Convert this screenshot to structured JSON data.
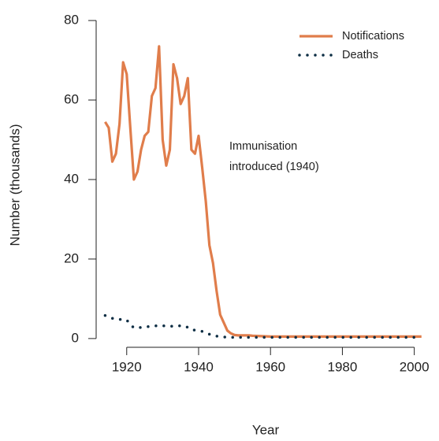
{
  "chart_data": {
    "type": "line",
    "x_label": "Year",
    "y_label": "Number (thousands)",
    "annotation": [
      "Immunisation",
      "introduced (1940)"
    ],
    "x": [
      1914,
      1915,
      1916,
      1917,
      1918,
      1919,
      1920,
      1921,
      1922,
      1923,
      1924,
      1925,
      1926,
      1927,
      1928,
      1929,
      1930,
      1931,
      1932,
      1933,
      1934,
      1935,
      1936,
      1937,
      1938,
      1939,
      1940,
      1941,
      1942,
      1943,
      1944,
      1945,
      1946,
      1947,
      1948,
      1949,
      1950,
      1951,
      1952,
      1953,
      1954,
      1955,
      1960,
      1965,
      1970,
      1975,
      1980,
      1985,
      1990,
      1995,
      2000,
      2002
    ],
    "series": [
      {
        "name": "Notifications",
        "color": "#e07d4b",
        "style": "solid",
        "values": [
          54.5,
          53,
          44.5,
          46.5,
          54,
          69.5,
          66.5,
          53,
          40,
          42,
          47.5,
          51,
          52,
          61,
          63,
          73.5,
          50,
          43.5,
          47.5,
          69,
          65.5,
          59,
          61,
          65.5,
          47.5,
          46.5,
          51,
          43,
          34.5,
          23.5,
          19,
          12,
          6,
          4,
          2,
          1.3,
          0.9,
          0.8,
          0.8,
          0.8,
          0.8,
          0.7,
          0.5,
          0.5,
          0.5,
          0.5,
          0.5,
          0.5,
          0.5,
          0.5,
          0.5,
          0.5
        ]
      },
      {
        "name": "Deaths",
        "color": "#0d2e44",
        "style": "dotted",
        "values": [
          5.8,
          5.5,
          5.1,
          4.9,
          4.8,
          4.8,
          4.7,
          3.5,
          2.7,
          2.7,
          2.8,
          2.9,
          3,
          3.1,
          3.2,
          3.2,
          3.2,
          3.2,
          3.1,
          3.1,
          3.2,
          3.2,
          3.2,
          2.8,
          2.2,
          2.1,
          2,
          1.8,
          1.5,
          1.1,
          0.8,
          0.6,
          0.5,
          0.4,
          0.3,
          0.3,
          0.3,
          0.3,
          0.3,
          0.3,
          0.3,
          0.3,
          0.3,
          0.3,
          0.3,
          0.3,
          0.3,
          0.3,
          0.3,
          0.3,
          0.3,
          0.3
        ]
      }
    ],
    "xlim": [
      1911.5,
      2006
    ],
    "xticks": [
      1920,
      1940,
      1960,
      1980,
      2000
    ],
    "ylim": [
      -2.2,
      81.2
    ],
    "yticks": [
      0,
      20,
      40,
      60,
      80
    ],
    "legend": "top-right",
    "grid": false
  }
}
